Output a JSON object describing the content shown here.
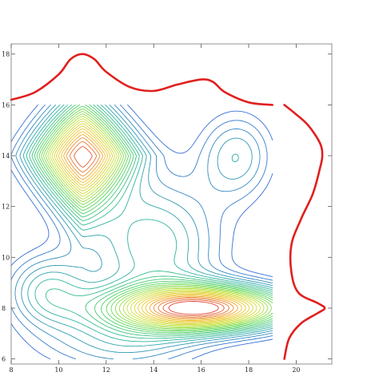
{
  "chart_data": {
    "type": "contour",
    "title": "",
    "xlabel": "",
    "ylabel": "",
    "xlim": [
      8,
      21.5
    ],
    "ylim": [
      5.8,
      18.4
    ],
    "x_ticks": [
      8,
      10,
      12,
      14,
      16,
      18,
      20
    ],
    "y_ticks": [
      6,
      8,
      10,
      12,
      14,
      16,
      18
    ],
    "x_tick_labels": [
      "8",
      "10",
      "12",
      "14",
      "16",
      "18",
      "20"
    ],
    "y_tick_labels": [
      "6",
      "8",
      "10",
      "12",
      "14",
      "16",
      "18"
    ],
    "contour_domain": {
      "x": [
        8,
        19
      ],
      "y": [
        6,
        16
      ]
    },
    "peaks": [
      {
        "x": 11,
        "y": 14,
        "height": 1.0,
        "shape": "diamond"
      },
      {
        "x": 16,
        "y": 8,
        "height": 1.0,
        "shape": "elongated-horizontal"
      }
    ],
    "colormap": [
      "#3a6fd8",
      "#2fb5a0",
      "#58d65a",
      "#c8e33a",
      "#f2c12e",
      "#e0483a"
    ],
    "marginal_x": {
      "color": "#e0201f",
      "x_range": [
        8,
        19
      ],
      "points": [
        {
          "x": 8,
          "y": 16.2
        },
        {
          "x": 9,
          "y": 16.5
        },
        {
          "x": 10,
          "y": 17.2
        },
        {
          "x": 10.5,
          "y": 17.8
        },
        {
          "x": 11,
          "y": 18.0
        },
        {
          "x": 11.5,
          "y": 17.8
        },
        {
          "x": 12,
          "y": 17.3
        },
        {
          "x": 13,
          "y": 16.7
        },
        {
          "x": 14,
          "y": 16.55
        },
        {
          "x": 15,
          "y": 16.8
        },
        {
          "x": 16,
          "y": 17.0
        },
        {
          "x": 16.5,
          "y": 16.9
        },
        {
          "x": 17,
          "y": 16.5
        },
        {
          "x": 18,
          "y": 16.1
        },
        {
          "x": 19,
          "y": 16.0
        }
      ]
    },
    "marginal_y": {
      "color": "#e0201f",
      "y_range": [
        6,
        16
      ],
      "points": [
        {
          "y": 6.0,
          "x": 19.5
        },
        {
          "y": 6.8,
          "x": 19.7
        },
        {
          "y": 7.4,
          "x": 20.2
        },
        {
          "y": 7.8,
          "x": 20.9
        },
        {
          "y": 8.0,
          "x": 21.2
        },
        {
          "y": 8.2,
          "x": 20.9
        },
        {
          "y": 8.6,
          "x": 20.1
        },
        {
          "y": 9.4,
          "x": 19.8
        },
        {
          "y": 10.5,
          "x": 19.8
        },
        {
          "y": 11.5,
          "x": 20.2
        },
        {
          "y": 12.5,
          "x": 20.7
        },
        {
          "y": 13.5,
          "x": 21.0
        },
        {
          "y": 14.0,
          "x": 21.1
        },
        {
          "y": 14.5,
          "x": 21.0
        },
        {
          "y": 15.2,
          "x": 20.5
        },
        {
          "y": 15.7,
          "x": 19.9
        },
        {
          "y": 16.0,
          "x": 19.5
        }
      ]
    },
    "grid": false,
    "frame": true,
    "legend": "none"
  }
}
